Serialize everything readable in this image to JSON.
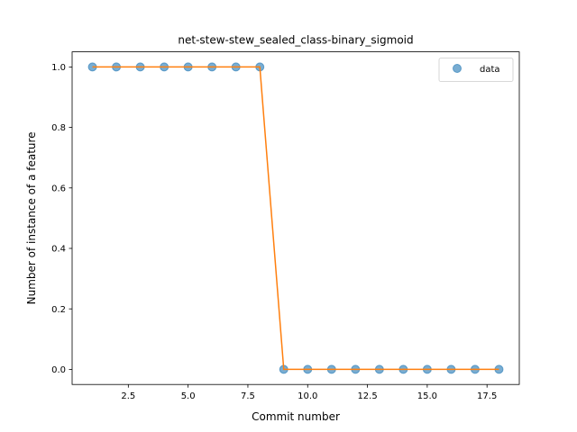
{
  "chart_data": {
    "type": "scatter",
    "title": "net-stew-stew_sealed_class-binary_sigmoid",
    "xlabel": "Commit number",
    "ylabel": "Number of instance of a feature",
    "xlim": [
      0.15,
      18.85
    ],
    "ylim": [
      -0.05,
      1.05
    ],
    "xticks": [
      2.5,
      5.0,
      7.5,
      10.0,
      12.5,
      15.0,
      17.5
    ],
    "xtick_labels": [
      "2.5",
      "5.0",
      "7.5",
      "10.0",
      "12.5",
      "15.0",
      "17.5"
    ],
    "yticks": [
      0.0,
      0.2,
      0.4,
      0.6,
      0.8,
      1.0
    ],
    "ytick_labels": [
      "0.0",
      "0.2",
      "0.4",
      "0.6",
      "0.8",
      "1.0"
    ],
    "grid": false,
    "legend_position": "top-right",
    "series": [
      {
        "name": "data",
        "kind": "scatter",
        "color": "#1f77b4",
        "x": [
          1,
          2,
          3,
          4,
          5,
          6,
          7,
          8,
          9,
          10,
          11,
          12,
          13,
          14,
          15,
          16,
          17,
          18
        ],
        "y": [
          1,
          1,
          1,
          1,
          1,
          1,
          1,
          1,
          0,
          0,
          0,
          0,
          0,
          0,
          0,
          0,
          0,
          0
        ]
      },
      {
        "kind": "line",
        "color": "#ff7f0e",
        "x": [
          1,
          2,
          3,
          4,
          5,
          6,
          7,
          8,
          9,
          10,
          11,
          12,
          13,
          14,
          15,
          16,
          17,
          18
        ],
        "y": [
          1,
          1,
          1,
          1,
          1,
          1,
          1,
          1,
          0,
          0,
          0,
          0,
          0,
          0,
          0,
          0,
          0,
          0
        ]
      }
    ]
  }
}
